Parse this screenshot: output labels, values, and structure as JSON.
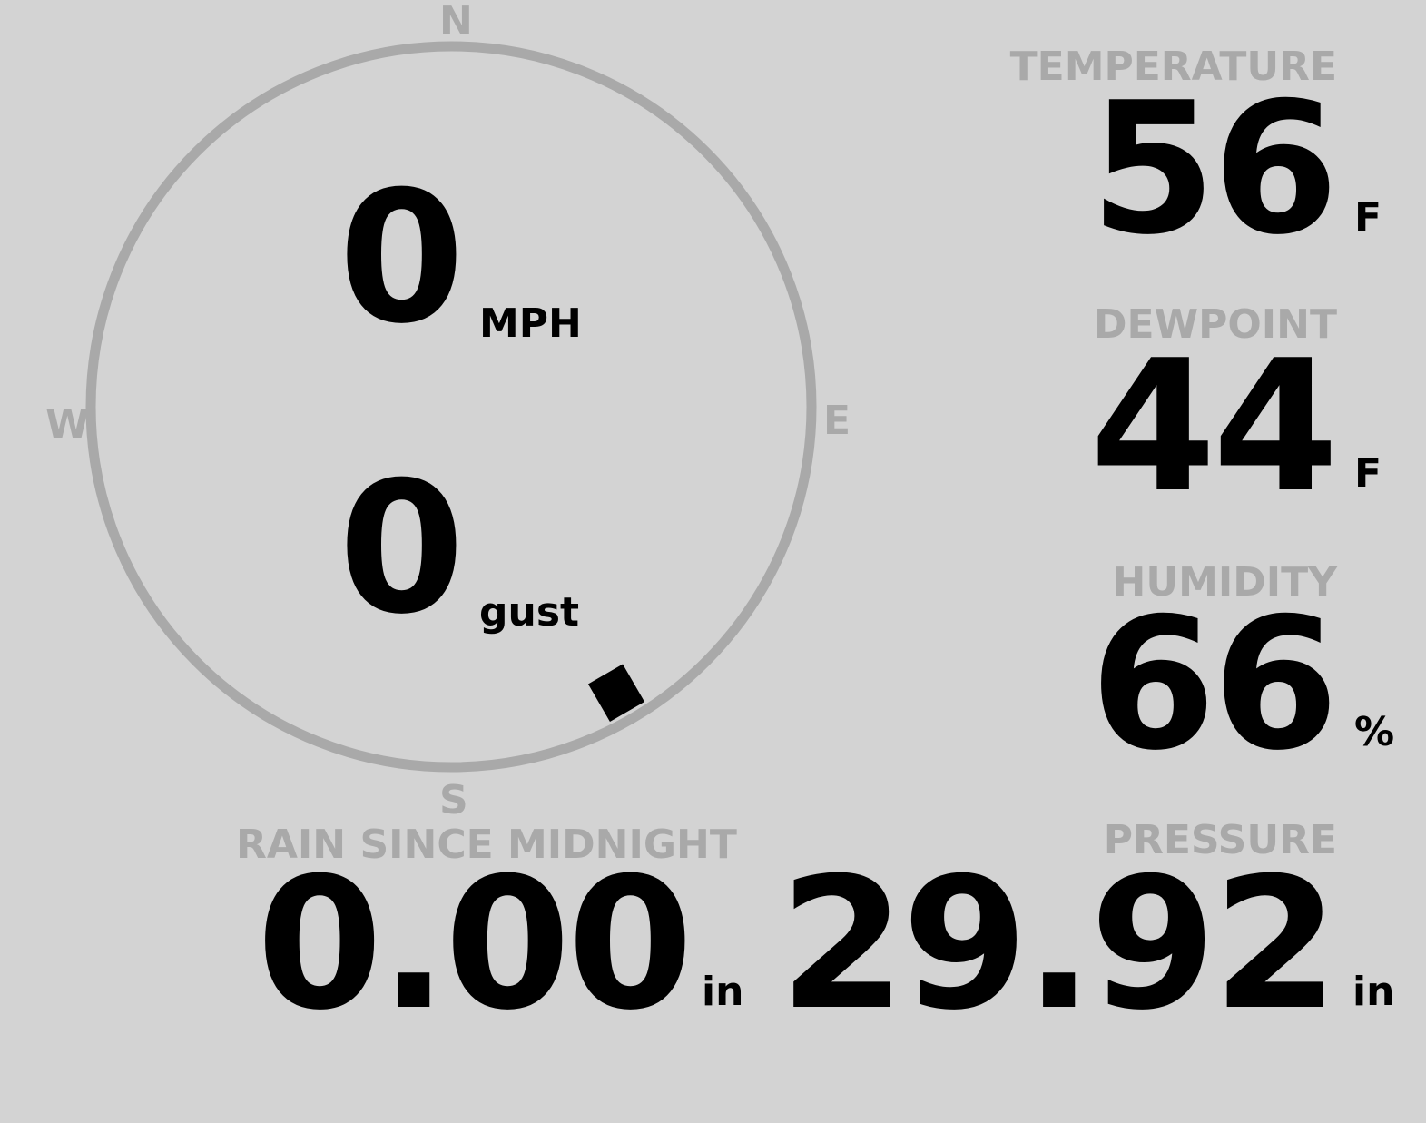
{
  "wind": {
    "speed": "0",
    "speed_unit": "MPH",
    "gust": "0",
    "gust_unit": "gust",
    "direction_deg": 150,
    "compass": {
      "n": "N",
      "e": "E",
      "s": "S",
      "w": "W"
    }
  },
  "temperature": {
    "label": "TEMPERATURE",
    "value": "56",
    "unit": "F"
  },
  "dewpoint": {
    "label": "DEWPOINT",
    "value": "44",
    "unit": "F"
  },
  "humidity": {
    "label": "HUMIDITY",
    "value": "66",
    "unit": "%"
  },
  "pressure": {
    "label": "PRESSURE",
    "value": "29.92",
    "unit": "in"
  },
  "rain": {
    "label": "RAIN SINCE MIDNIGHT",
    "value": "0.00",
    "unit": "in"
  },
  "colors": {
    "background": "#d3d3d3",
    "label": "#a9a9a9",
    "value": "#000000",
    "ring": "#a9a9a9"
  }
}
